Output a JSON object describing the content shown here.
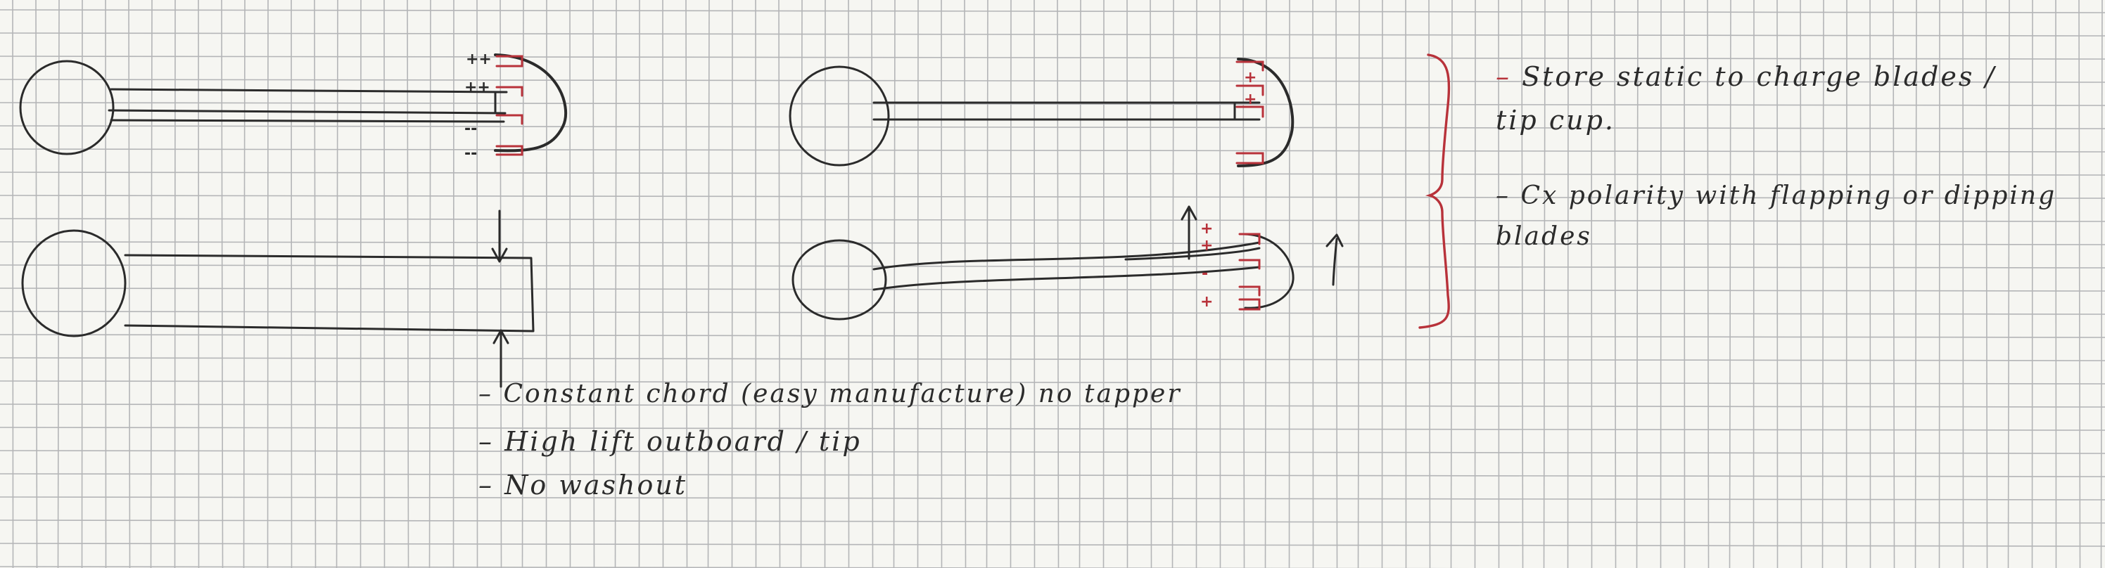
{
  "notes": {
    "left": [
      "Constant chord (easy manufacture) no tapper",
      "High lift outboard / tip",
      "No washout"
    ],
    "right": [
      "Store static to charge blades / tip cup.",
      "Cx polarity with flapping or dipping blades"
    ]
  },
  "polarity": {
    "plus": "++",
    "minus": "--",
    "single_plus": "+",
    "single_minus": "-"
  },
  "colors": {
    "paper": "#f6f6f2",
    "grid": "#9ea0a4",
    "ink": "#2b2b2b",
    "red_ink": "#b8323a"
  }
}
